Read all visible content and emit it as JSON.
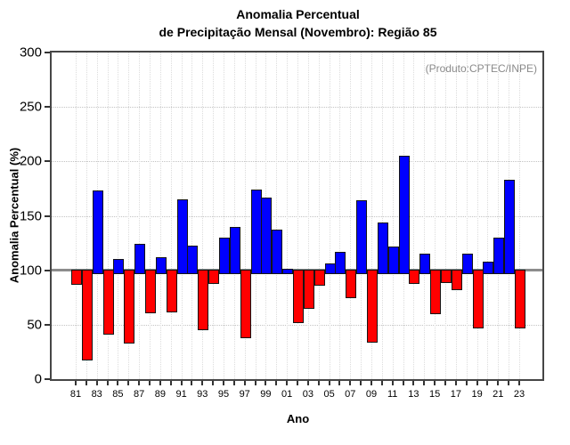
{
  "header": {
    "title_line1": "Anomalia Percentual",
    "title_line2": "de Precipitação Mensal (Novembro): Região 85"
  },
  "annotation": {
    "text": "(Produto:CPTEC/INPE)",
    "color": "#8a8a8a"
  },
  "chart_data": {
    "type": "bar",
    "title": "Anomalia Percentual de Precipitação Mensal (Novembro): Região 85",
    "xlabel": "Ano",
    "ylabel": "Anomalia Percentual (%)",
    "ylim": [
      0,
      300
    ],
    "y_ticks": [
      0,
      50,
      100,
      150,
      200,
      250,
      300
    ],
    "baseline": 100,
    "grid": true,
    "legend": "none",
    "x_tick_labels": [
      "81",
      "83",
      "85",
      "87",
      "89",
      "91",
      "93",
      "95",
      "97",
      "99",
      "01",
      "03",
      "05",
      "07",
      "09",
      "11",
      "13",
      "15",
      "17",
      "19",
      "21",
      "23"
    ],
    "years": [
      "81",
      "82",
      "83",
      "84",
      "85",
      "86",
      "87",
      "88",
      "89",
      "90",
      "91",
      "92",
      "93",
      "94",
      "95",
      "96",
      "97",
      "98",
      "99",
      "00",
      "01",
      "02",
      "03",
      "04",
      "05",
      "06",
      "07",
      "08",
      "09",
      "10",
      "11",
      "12",
      "13",
      "14",
      "15",
      "16",
      "17",
      "18",
      "19",
      "20",
      "21",
      "22",
      "23"
    ],
    "values": [
      89,
      20,
      173,
      43,
      110,
      35,
      124,
      63,
      112,
      64,
      165,
      123,
      47,
      90,
      130,
      140,
      40,
      174,
      167,
      137,
      101,
      54,
      67,
      88,
      106,
      117,
      77,
      164,
      36,
      144,
      122,
      205,
      90,
      115,
      62,
      91,
      84,
      115,
      49,
      108,
      130,
      183,
      49
    ],
    "colors": {
      "above_baseline": "#0000FF",
      "below_baseline": "#FF0000",
      "bar_border": "#141414",
      "baseline_line": "#8c8c8c"
    }
  }
}
